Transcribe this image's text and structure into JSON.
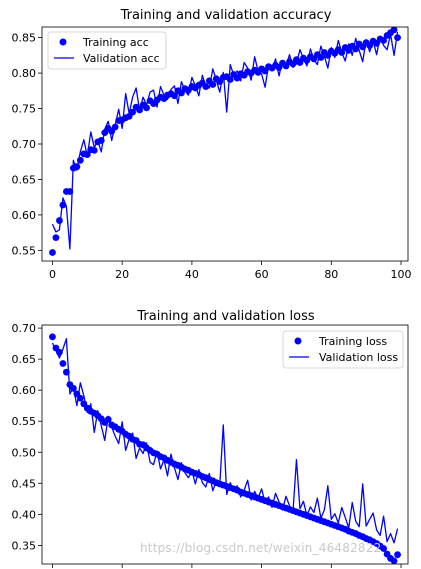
{
  "colors": {
    "series": "#0000ff",
    "axis": "#000000",
    "background": "#ffffff",
    "watermark": "#c9c9c9"
  },
  "watermark": "https://blog.csdn.net/weixin_46482822",
  "chart_data": [
    {
      "type": "line",
      "title": "Training and validation accuracy",
      "xlabel": "",
      "ylabel": "",
      "xlim": [
        -3,
        102
      ],
      "ylim": [
        0.535,
        0.865
      ],
      "xticks": [
        0,
        20,
        40,
        60,
        80,
        100
      ],
      "yticks": [
        0.55,
        0.6,
        0.65,
        0.7,
        0.75,
        0.8,
        0.85
      ],
      "ytick_labels": [
        "0.55",
        "0.60",
        "0.65",
        "0.70",
        "0.75",
        "0.80",
        "0.85"
      ],
      "xtick_labels": [
        "0",
        "20",
        "40",
        "60",
        "80",
        "100"
      ],
      "legend": {
        "placement": "top-left",
        "entries": [
          "Training acc",
          "Validation acc"
        ]
      },
      "grid": false,
      "series": [
        {
          "name": "Training acc",
          "style": "dots",
          "values": [
            0.547,
            0.568,
            0.592,
            0.614,
            0.633,
            0.633,
            0.666,
            0.668,
            0.677,
            0.686,
            0.685,
            0.692,
            0.691,
            0.703,
            0.705,
            0.716,
            0.722,
            0.718,
            0.724,
            0.733,
            0.734,
            0.737,
            0.739,
            0.745,
            0.752,
            0.748,
            0.755,
            0.751,
            0.761,
            0.757,
            0.762,
            0.766,
            0.764,
            0.769,
            0.771,
            0.768,
            0.775,
            0.772,
            0.778,
            0.776,
            0.781,
            0.779,
            0.783,
            0.786,
            0.781,
            0.789,
            0.784,
            0.792,
            0.788,
            0.794,
            0.795,
            0.791,
            0.798,
            0.793,
            0.799,
            0.797,
            0.802,
            0.8,
            0.804,
            0.801,
            0.806,
            0.803,
            0.809,
            0.807,
            0.811,
            0.808,
            0.814,
            0.81,
            0.816,
            0.813,
            0.819,
            0.815,
            0.821,
            0.818,
            0.823,
            0.82,
            0.826,
            0.822,
            0.829,
            0.825,
            0.831,
            0.828,
            0.833,
            0.829,
            0.836,
            0.832,
            0.838,
            0.834,
            0.841,
            0.837,
            0.843,
            0.839,
            0.845,
            0.842,
            0.848,
            0.846,
            0.853,
            0.857,
            0.861,
            0.85
          ]
        },
        {
          "name": "Validation acc",
          "style": "line",
          "values": [
            0.587,
            0.576,
            0.579,
            0.624,
            0.612,
            0.552,
            0.677,
            0.663,
            0.689,
            0.706,
            0.683,
            0.717,
            0.695,
            0.705,
            0.689,
            0.721,
            0.732,
            0.705,
            0.727,
            0.749,
            0.722,
            0.771,
            0.743,
            0.766,
            0.779,
            0.747,
            0.766,
            0.755,
            0.773,
            0.776,
            0.752,
            0.781,
            0.769,
            0.763,
            0.777,
            0.782,
            0.757,
            0.788,
            0.775,
            0.769,
            0.794,
            0.782,
            0.768,
            0.797,
            0.781,
            0.779,
            0.806,
            0.79,
            0.773,
            0.801,
            0.745,
            0.812,
            0.797,
            0.803,
            0.789,
            0.815,
            0.807,
            0.79,
            0.823,
            0.803,
            0.799,
            0.78,
            0.812,
            0.805,
            0.82,
            0.796,
            0.818,
            0.81,
            0.826,
            0.808,
            0.813,
            0.833,
            0.821,
            0.81,
            0.834,
            0.819,
            0.812,
            0.838,
            0.824,
            0.807,
            0.836,
            0.822,
            0.846,
            0.829,
            0.817,
            0.841,
            0.825,
            0.849,
            0.832,
            0.816,
            0.847,
            0.83,
            0.845,
            0.826,
            0.852,
            0.839,
            0.833,
            0.855,
            0.825,
            0.858
          ]
        }
      ]
    },
    {
      "type": "line",
      "title": "Training and validation loss",
      "xlabel": "",
      "ylabel": "",
      "xlim": [
        -3,
        102
      ],
      "ylim": [
        0.32,
        0.705
      ],
      "xticks": [
        0,
        20,
        40,
        60,
        80,
        100
      ],
      "yticks": [
        0.35,
        0.4,
        0.45,
        0.5,
        0.55,
        0.6,
        0.65,
        0.7
      ],
      "ytick_labels": [
        "0.35",
        "0.40",
        "0.45",
        "0.50",
        "0.55",
        "0.60",
        "0.65",
        "0.70"
      ],
      "xtick_labels": [
        "",
        "",
        "",
        "",
        "",
        ""
      ],
      "legend": {
        "placement": "top-right",
        "entries": [
          "Training loss",
          "Validation loss"
        ]
      },
      "grid": false,
      "series": [
        {
          "name": "Training loss",
          "style": "dots",
          "values": [
            0.686,
            0.668,
            0.661,
            0.643,
            0.629,
            0.609,
            0.603,
            0.594,
            0.587,
            0.578,
            0.571,
            0.566,
            0.563,
            0.559,
            0.554,
            0.548,
            0.553,
            0.544,
            0.541,
            0.537,
            0.534,
            0.529,
            0.526,
            0.521,
            0.519,
            0.513,
            0.512,
            0.507,
            0.503,
            0.499,
            0.497,
            0.493,
            0.491,
            0.487,
            0.484,
            0.481,
            0.479,
            0.476,
            0.473,
            0.471,
            0.468,
            0.466,
            0.464,
            0.461,
            0.459,
            0.456,
            0.454,
            0.451,
            0.449,
            0.447,
            0.445,
            0.443,
            0.441,
            0.439,
            0.436,
            0.434,
            0.432,
            0.43,
            0.428,
            0.426,
            0.424,
            0.422,
            0.42,
            0.418,
            0.416,
            0.414,
            0.412,
            0.41,
            0.408,
            0.406,
            0.404,
            0.402,
            0.4,
            0.398,
            0.396,
            0.394,
            0.392,
            0.39,
            0.388,
            0.386,
            0.384,
            0.382,
            0.38,
            0.378,
            0.376,
            0.373,
            0.371,
            0.369,
            0.366,
            0.364,
            0.361,
            0.359,
            0.356,
            0.353,
            0.349,
            0.345,
            0.336,
            0.329,
            0.325,
            0.335
          ]
        },
        {
          "name": "Validation loss",
          "style": "line",
          "values": [
            0.676,
            0.664,
            0.652,
            0.666,
            0.683,
            0.594,
            0.605,
            0.575,
            0.612,
            0.591,
            0.564,
            0.578,
            0.532,
            0.567,
            0.543,
            0.519,
            0.558,
            0.54,
            0.526,
            0.514,
            0.549,
            0.503,
            0.521,
            0.531,
            0.49,
            0.507,
            0.498,
            0.515,
            0.484,
            0.48,
            0.502,
            0.473,
            0.488,
            0.462,
            0.497,
            0.475,
            0.456,
            0.483,
            0.467,
            0.459,
            0.47,
            0.449,
            0.472,
            0.451,
            0.444,
            0.466,
            0.438,
            0.454,
            0.447,
            0.544,
            0.432,
            0.451,
            0.437,
            0.446,
            0.428,
            0.439,
            0.455,
            0.423,
            0.437,
            0.426,
            0.441,
            0.419,
            0.428,
            0.411,
            0.434,
            0.42,
            0.407,
            0.429,
            0.414,
            0.404,
            0.488,
            0.409,
            0.421,
            0.398,
            0.412,
            0.403,
            0.426,
            0.394,
            0.407,
            0.446,
            0.392,
            0.401,
            0.386,
            0.411,
            0.395,
            0.378,
            0.419,
            0.389,
            0.38,
            0.449,
            0.381,
            0.392,
            0.402,
            0.375,
            0.366,
            0.397,
            0.356,
            0.369,
            0.354,
            0.377
          ]
        }
      ]
    }
  ]
}
